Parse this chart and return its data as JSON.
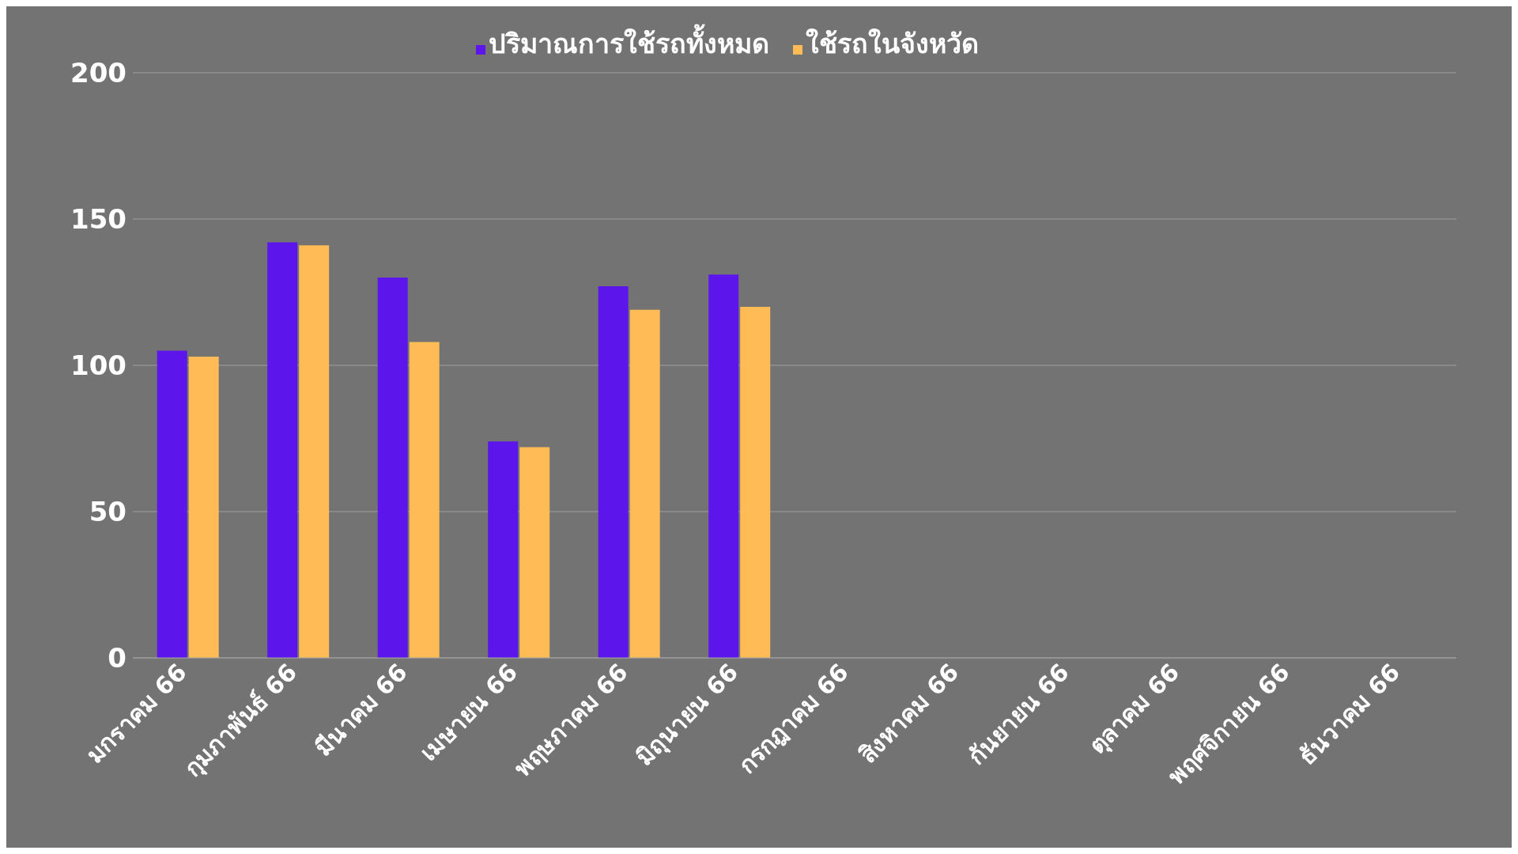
{
  "chart_data": {
    "type": "bar",
    "categories": [
      "มกราคม 66",
      "กุมภาพันธ์ 66",
      "มีนาคม 66",
      "เมษายน 66",
      "พฤษภาคม 66",
      "มิถุนายน 66",
      "กรกฎาคม 66",
      "สิงหาคม 66",
      "กันยายน 66",
      "ตุลาคม 66",
      "พฤศจิกายน 66",
      "ธันวาคม 66"
    ],
    "series": [
      {
        "name": "ปริมาณการใช้รถทั้งหมด",
        "color": "#5c16ec",
        "values": [
          105,
          142,
          130,
          74,
          127,
          131,
          null,
          null,
          null,
          null,
          null,
          null
        ]
      },
      {
        "name": "ใช้รถในจังหวัด",
        "color": "#ffbb56",
        "values": [
          103,
          141,
          108,
          72,
          119,
          120,
          null,
          null,
          null,
          null,
          null,
          null
        ]
      }
    ],
    "ylim": [
      0,
      200
    ],
    "yticks": [
      0,
      50,
      100,
      150,
      200
    ],
    "grid": "y",
    "legend": "top"
  }
}
